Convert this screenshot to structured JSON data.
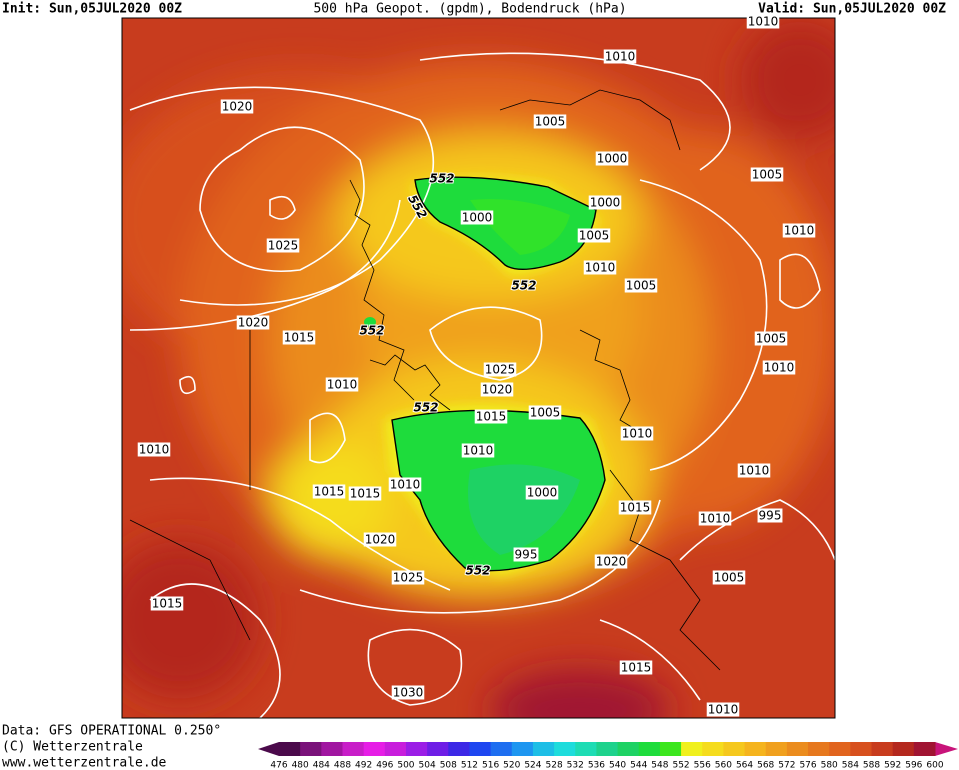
{
  "header": {
    "init": "Init: Sun,05JUL2020 00Z",
    "title": "500 hPa Geopot. (gpdm), Bodendruck (hPa)",
    "valid": "Valid: Sun,05JUL2020 00Z"
  },
  "isobar_labels": [
    "1010",
    "1010",
    "1020",
    "1005",
    "1000",
    "1005",
    "1000",
    "1000",
    "1005",
    "1025",
    "1010",
    "1010",
    "1005",
    "1020",
    "1015",
    "1005",
    "1025",
    "1010",
    "1010",
    "1020",
    "1015",
    "1005",
    "1010",
    "1010",
    "1010",
    "1010",
    "1015",
    "1015",
    "1010",
    "1000",
    "1015",
    "1010",
    "995",
    "1020",
    "995",
    "1020",
    "1025",
    "1005",
    "1015",
    "1015",
    "1030",
    "1010"
  ],
  "contour_labels": [
    "552",
    "552",
    "552",
    "552",
    "552",
    "552"
  ],
  "colorbar": {
    "labels": [
      476,
      480,
      484,
      488,
      492,
      496,
      500,
      504,
      508,
      512,
      516,
      520,
      524,
      528,
      532,
      536,
      540,
      544,
      548,
      552,
      556,
      560,
      564,
      568,
      572,
      576,
      580,
      584,
      588,
      592,
      596,
      600
    ],
    "colors": [
      "#4b0a4b",
      "#7a127a",
      "#a116a1",
      "#c81ec8",
      "#e61ee6",
      "#c81edc",
      "#9b1ee6",
      "#6e1ee6",
      "#3c28e6",
      "#1e46f0",
      "#1e6ef0",
      "#1e96f0",
      "#1ebee6",
      "#1edcdc",
      "#1edcb4",
      "#1ed28c",
      "#1ed264",
      "#1edc3c",
      "#3ce61e",
      "#f0f01e",
      "#f5dc1e",
      "#f5c81e",
      "#f5b41e",
      "#f0a01e",
      "#eb8c1e",
      "#e6781e",
      "#e1641e",
      "#d7501e",
      "#c83c1e",
      "#b4281e",
      "#a01432"
    ]
  },
  "footer": {
    "data": "Data: GFS OPERATIONAL 0.250°",
    "copyright": "(C) Wetterzentrale",
    "url": "www.wetterzentrale.de"
  }
}
